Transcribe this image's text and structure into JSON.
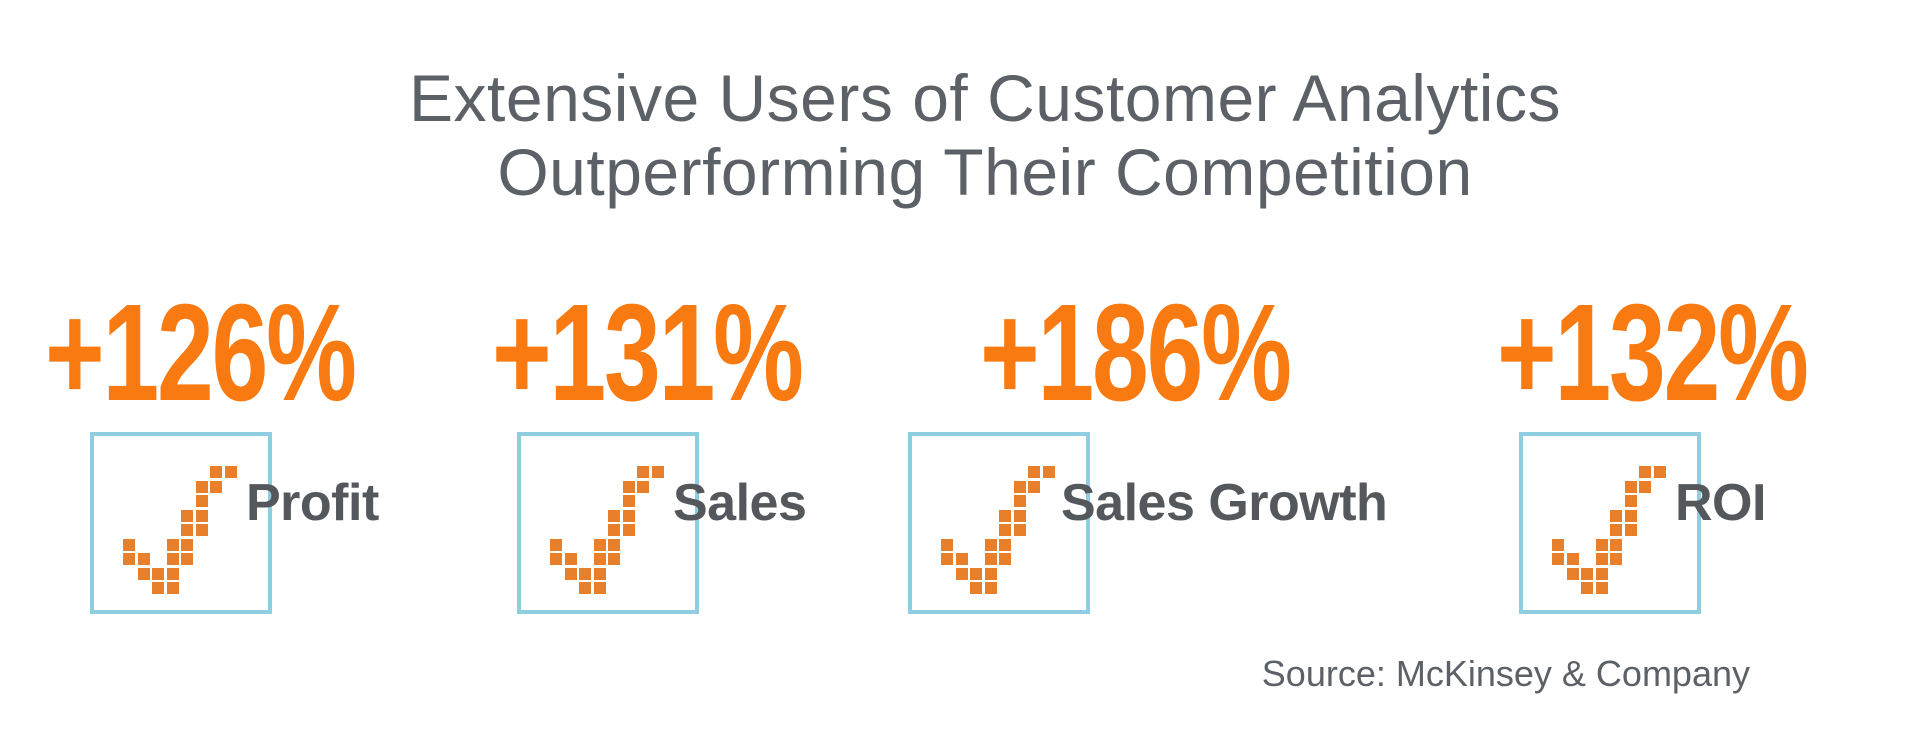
{
  "title": {
    "line1": "Extensive Users of Customer Analytics",
    "line2": "Outperforming Their Competition"
  },
  "stats": [
    {
      "value": "+126%",
      "label": "Profit"
    },
    {
      "value": "+131%",
      "label": "Sales"
    },
    {
      "value": "+186%",
      "label": "Sales Growth"
    },
    {
      "value": "+132%",
      "label": "ROI"
    }
  ],
  "source": "Source: McKinsey & Company",
  "icon": {
    "name": "pixel-checkmark",
    "pattern": [
      "......XX",
      ".....XX.",
      ".....X..",
      "....XX..",
      "....XX..",
      "X..XX...",
      "XX.XX...",
      ".XXX....",
      "..XX...."
    ]
  },
  "colors": {
    "accent_orange": "#F87A10",
    "icon_orange": "#E87F2A",
    "box_border_blue": "#8FCEE1",
    "title_gray": "#5B6167",
    "label_gray": "#54585D"
  },
  "chart_data": {
    "type": "table",
    "title": "Extensive Users of Customer Analytics Outperforming Their Competition",
    "categories": [
      "Profit",
      "Sales",
      "Sales Growth",
      "ROI"
    ],
    "values": [
      126,
      131,
      186,
      132
    ],
    "value_labels": [
      "+126%",
      "+131%",
      "+186%",
      "+132%"
    ],
    "units": "percent",
    "source": "Source: McKinsey & Company",
    "legend": "off",
    "grid": "off"
  }
}
